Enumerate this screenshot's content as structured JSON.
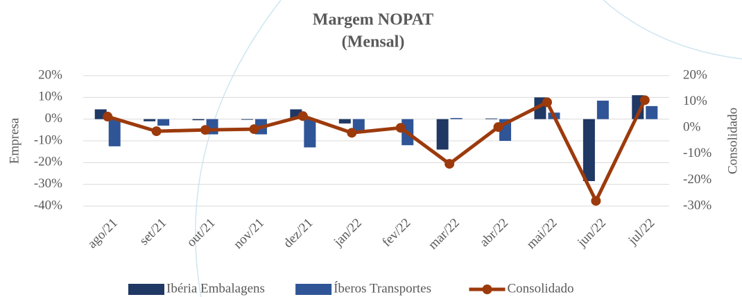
{
  "chart_data": {
    "type": "combo",
    "title": "Margem NOPAT",
    "subtitle": "(Mensal)",
    "y_label": "Empresa",
    "y2_label": "Consolidado",
    "categories": [
      "ago/21",
      "set/21",
      "out/21",
      "nov/21",
      "dez/21",
      "jan/22",
      "fev/22",
      "mar/22",
      "abr/22",
      "mai/22",
      "jun/22",
      "jul/22"
    ],
    "series": [
      {
        "name": "Ibéria Embalagens",
        "type": "bar",
        "color": "#1f3864",
        "values": [
          4.5,
          -1,
          -0.5,
          -0.3,
          4.5,
          -2,
          0,
          -14,
          0.3,
          10,
          -28.5,
          11
        ]
      },
      {
        "name": "Íberos Transportes",
        "type": "bar",
        "color": "#2f5597",
        "values": [
          -12.5,
          -3,
          -7,
          -7,
          -13,
          -6,
          -12,
          0.5,
          -10,
          3,
          8.5,
          6
        ]
      },
      {
        "name": "Consolidado",
        "type": "line",
        "axis": "y2",
        "color": "#9c3a0c",
        "values": [
          4.3,
          -1.3,
          -0.8,
          -0.5,
          4.5,
          -1.9,
          0,
          -13.8,
          0.3,
          9.8,
          -28,
          10.6
        ]
      }
    ],
    "ylim": [
      -40,
      20
    ],
    "yticks": [
      {
        "value": -40,
        "label": "-40%"
      },
      {
        "value": -30,
        "label": "-30%"
      },
      {
        "value": -20,
        "label": "-20%"
      },
      {
        "value": -10,
        "label": "-10%"
      },
      {
        "value": 0,
        "label": "0%"
      },
      {
        "value": 10,
        "label": "10%"
      },
      {
        "value": 20,
        "label": "20%"
      }
    ],
    "y2lim": [
      -30,
      20
    ],
    "y2ticks": [
      {
        "value": -30,
        "label": "-30%"
      },
      {
        "value": -20,
        "label": "-20%"
      },
      {
        "value": -10,
        "label": "-10%"
      },
      {
        "value": 0,
        "label": "0%"
      },
      {
        "value": 10,
        "label": "10%"
      },
      {
        "value": 20,
        "label": "20%"
      }
    ],
    "grid": true,
    "legend": "bottom"
  }
}
